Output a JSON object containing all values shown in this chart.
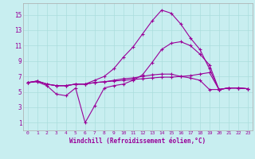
{
  "xlabel": "Windchill (Refroidissement éolien,°C)",
  "background_color": "#c8eef0",
  "grid_color": "#aadddd",
  "line_color": "#990099",
  "x_ticks": [
    0,
    1,
    2,
    3,
    4,
    5,
    6,
    7,
    8,
    9,
    10,
    11,
    12,
    13,
    14,
    15,
    16,
    17,
    18,
    19,
    20,
    21,
    22,
    23
  ],
  "y_ticks": [
    1,
    3,
    5,
    7,
    9,
    11,
    13,
    15
  ],
  "xlim": [
    -0.5,
    23.5
  ],
  "ylim": [
    0.0,
    16.5
  ],
  "series": [
    [
      6.2,
      6.4,
      6.0,
      5.8,
      5.8,
      6.0,
      6.0,
      6.2,
      6.3,
      6.4,
      6.5,
      6.6,
      6.7,
      6.8,
      6.9,
      6.9,
      7.0,
      7.1,
      7.3,
      7.5,
      5.3,
      5.5,
      5.5,
      5.4
    ],
    [
      6.2,
      6.4,
      6.0,
      5.8,
      5.8,
      6.0,
      6.0,
      6.2,
      6.3,
      6.5,
      6.7,
      6.8,
      7.0,
      7.2,
      7.3,
      7.3,
      7.0,
      6.8,
      6.5,
      5.3,
      5.3,
      5.5,
      5.5,
      5.4
    ],
    [
      6.2,
      6.3,
      5.8,
      4.7,
      4.5,
      5.5,
      1.0,
      3.2,
      5.5,
      5.8,
      6.0,
      6.5,
      7.2,
      8.8,
      10.5,
      11.3,
      11.5,
      11.0,
      9.9,
      8.5,
      5.3,
      5.5,
      5.5,
      5.4
    ],
    [
      6.2,
      6.4,
      6.0,
      5.8,
      5.8,
      6.0,
      6.0,
      6.5,
      7.0,
      8.0,
      9.5,
      10.8,
      12.5,
      14.2,
      15.6,
      15.2,
      13.8,
      12.0,
      10.5,
      8.0,
      5.3,
      5.5,
      5.5,
      5.4
    ]
  ]
}
